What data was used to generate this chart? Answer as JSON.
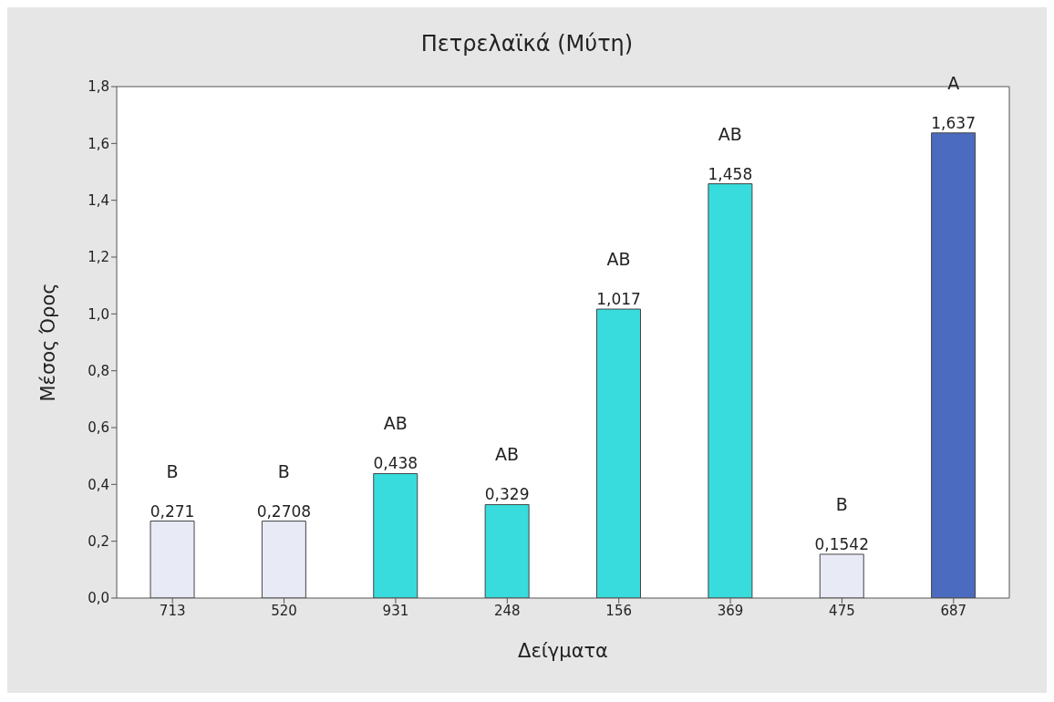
{
  "chart_data": {
    "type": "bar",
    "title": "Πετρελαϊκά (Μύτη)",
    "xlabel": "Δείγματα",
    "ylabel": "Μέσος Όρος",
    "categories": [
      "713",
      "520",
      "931",
      "248",
      "156",
      "369",
      "475",
      "687"
    ],
    "values": [
      0.271,
      0.2708,
      0.438,
      0.329,
      1.017,
      1.458,
      0.1542,
      1.637
    ],
    "colors": [
      "#e8eaf6",
      "#e8eaf6",
      "#38dcdc",
      "#38dcdc",
      "#38dcdc",
      "#38dcdc",
      "#e8eaf6",
      "#4a6bbf"
    ],
    "value_labels": [
      "0,271",
      "0,2708",
      "0,438",
      "0,329",
      "1,017",
      "1,458",
      "0,1542",
      "1,637"
    ],
    "ylim": [
      0,
      1.8
    ],
    "yticks": [
      {
        "value": 0,
        "label": "0,0"
      },
      {
        "value": 0.2,
        "label": "0,2"
      },
      {
        "value": 0.4,
        "label": "0,4"
      },
      {
        "value": 0.6,
        "label": "0,6"
      },
      {
        "value": 0.8,
        "label": "0,8"
      },
      {
        "value": 1.0,
        "label": "1,0"
      },
      {
        "value": 1.2,
        "label": "1,2"
      },
      {
        "value": 1.4,
        "label": "1,4"
      },
      {
        "value": 1.6,
        "label": "1,6"
      },
      {
        "value": 1.8,
        "label": "1,8"
      }
    ],
    "annotations": [
      "B",
      "B",
      "AB",
      "AB",
      "AB",
      "AB",
      "B",
      "A"
    ]
  }
}
